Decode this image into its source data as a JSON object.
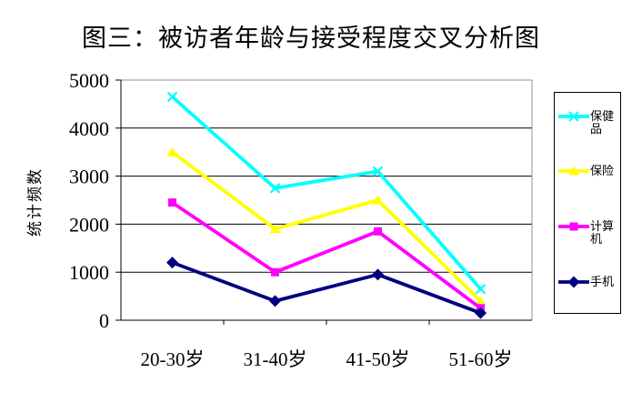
{
  "chart_data": {
    "type": "line",
    "title": "图三：被访者年龄与接受程度交叉分析图",
    "ylabel": "统计频数",
    "xlabel": "",
    "categories": [
      "20-30岁",
      "31-40岁",
      "41-50岁",
      "51-60岁"
    ],
    "series": [
      {
        "name": "保健品",
        "color": "#00ffff",
        "marker": "x",
        "values": [
          4650,
          2750,
          3100,
          650
        ]
      },
      {
        "name": "保险",
        "color": "#ffff00",
        "marker": "triangle",
        "values": [
          3500,
          1900,
          2500,
          400
        ]
      },
      {
        "name": "计算机",
        "color": "#ff00ff",
        "marker": "square",
        "values": [
          2450,
          1000,
          1850,
          250
        ]
      },
      {
        "name": "手机",
        "color": "#000080",
        "marker": "diamond",
        "values": [
          1200,
          400,
          950,
          150
        ]
      }
    ],
    "ylim": [
      0,
      5000
    ],
    "yticks": [
      0,
      1000,
      2000,
      3000,
      4000,
      5000
    ],
    "grid": true,
    "legend_position": "right"
  }
}
